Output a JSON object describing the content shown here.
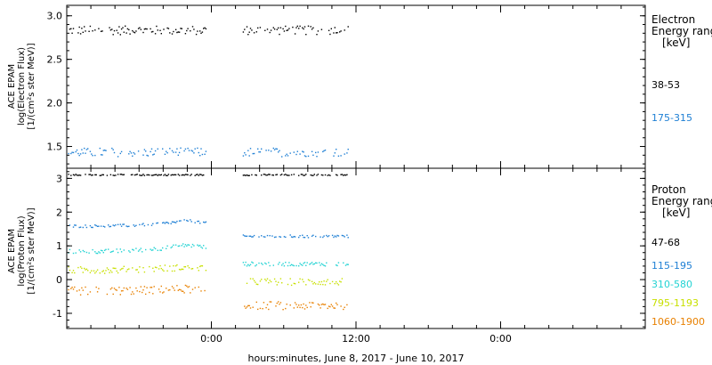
{
  "x_axis_title": "hours:minutes, June  8, 2017 - June 10, 2017",
  "chart_data": [
    {
      "type": "scatter",
      "ylabel": [
        "ACE EPAM",
        "log(Electron Flux)",
        "[1/(cm²s ster MeV)]"
      ],
      "ylim": [
        1.25,
        3.12
      ],
      "yticks": [
        1.5,
        2.0,
        2.5,
        3.0
      ],
      "ytick_labels": [
        "1.5",
        "2.0",
        "2.5",
        "3.0"
      ],
      "xlim": [
        -12,
        36
      ],
      "x_units": "hours relative to 00:00, June 9, 2017",
      "gap": [
        -0.5,
        2.5
      ],
      "data_end": 11.3,
      "legend": {
        "title": [
          "Electron",
          "Energy ranges",
          "[keV]"
        ],
        "entries": [
          {
            "label": "38-53",
            "color": "#000000"
          },
          {
            "label": "175-315",
            "color": "#1e7fd4"
          }
        ]
      },
      "series": [
        {
          "name": "38-53",
          "color": "#000000",
          "level_before": 2.84,
          "level_after": 2.84,
          "noise": 0.05
        },
        {
          "name": "175-315",
          "color": "#1e7fd4",
          "level_before": 1.44,
          "level_after": 1.44,
          "noise": 0.05
        }
      ]
    },
    {
      "type": "scatter",
      "ylabel": [
        "ACE EPAM",
        "log(Proton Flux)",
        "[1/(cm²s ster MeV)]"
      ],
      "ylim": [
        -1.45,
        3.3
      ],
      "yticks": [
        -1,
        0,
        1,
        2,
        3
      ],
      "ytick_labels": [
        "-1",
        "0",
        "1",
        "2",
        "3"
      ],
      "xlim": [
        -12,
        36
      ],
      "x_units": "hours relative to 00:00, June 9, 2017",
      "gap": [
        -0.5,
        2.5
      ],
      "data_end": 11.3,
      "legend": {
        "title": [
          "Proton",
          "Energy ranges",
          "[keV]"
        ],
        "entries": [
          {
            "label": "47-68",
            "color": "#000000"
          },
          {
            "label": "115-195",
            "color": "#1e7fd4"
          },
          {
            "label": "310-580",
            "color": "#22d3d3"
          },
          {
            "label": "795-1193",
            "color": "#c8e000"
          },
          {
            "label": "1060-1900",
            "color": "#e88000"
          }
        ]
      },
      "series": [
        {
          "name": "47-68",
          "color": "#000000",
          "level_before": 3.12,
          "level_after": 3.12,
          "noise": 0.02,
          "rise": 0.0
        },
        {
          "name": "115-195",
          "color": "#1e7fd4",
          "level_before": 1.6,
          "level_after": 1.3,
          "noise": 0.04,
          "rise": 0.25
        },
        {
          "name": "310-580",
          "color": "#22d3d3",
          "level_before": 0.85,
          "level_after": 0.48,
          "noise": 0.06,
          "rise": 0.3
        },
        {
          "name": "795-1193",
          "color": "#c8e000",
          "level_before": 0.3,
          "level_after": -0.05,
          "noise": 0.1,
          "rise": 0.15
        },
        {
          "name": "1060-1900",
          "color": "#e88000",
          "level_before": -0.32,
          "level_after": -0.75,
          "noise": 0.12,
          "rise": 0.1
        }
      ]
    }
  ],
  "x_ticks": [
    {
      "x": 0,
      "label": "0:00"
    },
    {
      "x": 12,
      "label": "12:00"
    },
    {
      "x": 24,
      "label": "0:00"
    }
  ]
}
